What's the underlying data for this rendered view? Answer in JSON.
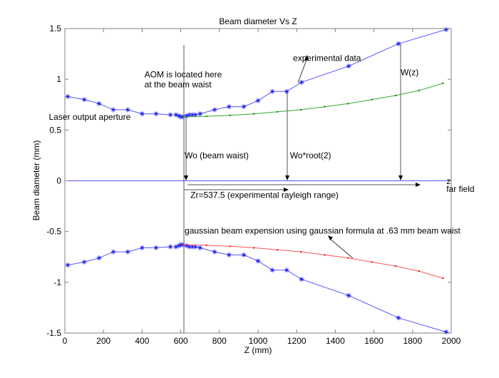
{
  "chart_data": {
    "type": "line",
    "title": "Beam diameter Vs Z",
    "xlabel": "Z (mm)",
    "ylabel": "Beam diameter (mm)",
    "xlim": [
      0,
      2000
    ],
    "ylim": [
      -1.5,
      1.5
    ],
    "xticks": [
      0,
      200,
      400,
      600,
      800,
      1000,
      1200,
      1400,
      1600,
      1800,
      2000
    ],
    "yticks": [
      -1.5,
      -1,
      -0.5,
      0,
      0.5,
      1,
      1.5
    ],
    "ytick_labels": [
      "-1.5",
      "-1",
      "-0.5",
      "0",
      "0.5",
      "1",
      "1.5"
    ],
    "grid": false,
    "legend": null,
    "series": [
      {
        "name": "experimental data (upper)",
        "color": "#0000ff",
        "marker": "*",
        "x": [
          15,
          100,
          177,
          251,
          325,
          400,
          472,
          546,
          575,
          590,
          600,
          610,
          630,
          645,
          660,
          675,
          700,
          775,
          850,
          926,
          1000,
          1074,
          1148,
          1225,
          1469,
          1727,
          1974
        ],
        "y": [
          0.83,
          0.8,
          0.76,
          0.7,
          0.7,
          0.66,
          0.66,
          0.65,
          0.65,
          0.64,
          0.63,
          0.63,
          0.64,
          0.65,
          0.65,
          0.65,
          0.66,
          0.7,
          0.73,
          0.73,
          0.79,
          0.88,
          0.88,
          0.97,
          1.13,
          1.35,
          1.49
        ]
      },
      {
        "name": "experimental data (lower)",
        "color": "#0000ff",
        "marker": "*",
        "x": [
          15,
          100,
          177,
          251,
          325,
          400,
          472,
          546,
          575,
          590,
          600,
          610,
          630,
          645,
          660,
          675,
          700,
          775,
          850,
          926,
          1000,
          1074,
          1148,
          1225,
          1469,
          1727,
          1974
        ],
        "y": [
          -0.83,
          -0.8,
          -0.76,
          -0.7,
          -0.7,
          -0.66,
          -0.66,
          -0.65,
          -0.65,
          -0.64,
          -0.63,
          -0.63,
          -0.64,
          -0.65,
          -0.65,
          -0.65,
          -0.66,
          -0.7,
          -0.73,
          -0.73,
          -0.79,
          -0.88,
          -0.88,
          -0.97,
          -1.13,
          -1.35,
          -1.49
        ]
      },
      {
        "name": "gaussian theory (upper)",
        "color": "#008000",
        "marker": ".",
        "x": [
          610,
          733,
          855,
          978,
          1100,
          1222,
          1345,
          1467,
          1589,
          1712,
          1834,
          1957
        ],
        "y": [
          0.63,
          0.635,
          0.645,
          0.66,
          0.68,
          0.7,
          0.73,
          0.76,
          0.8,
          0.84,
          0.89,
          0.96
        ]
      },
      {
        "name": "gaussian theory (lower)",
        "color": "#ff0000",
        "marker": ".",
        "x": [
          610,
          733,
          855,
          978,
          1100,
          1222,
          1345,
          1467,
          1589,
          1712,
          1834,
          1957
        ],
        "y": [
          -0.63,
          -0.635,
          -0.645,
          -0.66,
          -0.68,
          -0.7,
          -0.73,
          -0.76,
          -0.8,
          -0.84,
          -0.89,
          -0.96
        ]
      },
      {
        "name": "axis line z=0",
        "color": "#0000ff",
        "marker": "none",
        "x": [
          0,
          2000
        ],
        "y": [
          0,
          0
        ]
      }
    ],
    "annotations": [
      {
        "text": "AOM is located here",
        "x": 412,
        "y": 1.02
      },
      {
        "text": "at the beam waist",
        "x": 412,
        "y": 0.92
      },
      {
        "text": "Laser output aperture",
        "x": -83,
        "y": 0.6
      },
      {
        "text": "experimental data",
        "x": 1181,
        "y": 1.18
      },
      {
        "text": "W(z)",
        "x": 1738,
        "y": 1.04
      },
      {
        "text": "Wo (beam waist)",
        "x": 620,
        "y": 0.22
      },
      {
        "text": "Wo*root(2)",
        "x": 1165,
        "y": 0.22
      },
      {
        "text": "Zr=537.5 (experimental rayleigh range)",
        "x": 650,
        "y": -0.17
      },
      {
        "text": "z",
        "x": 1975,
        "y": -0.03
      },
      {
        "text": "far field",
        "x": 1975,
        "y": -0.11
      },
      {
        "text": "gaussian beam expension using gaussian formula at .63 mm beam waist",
        "x": 620,
        "y": -0.52
      }
    ]
  }
}
